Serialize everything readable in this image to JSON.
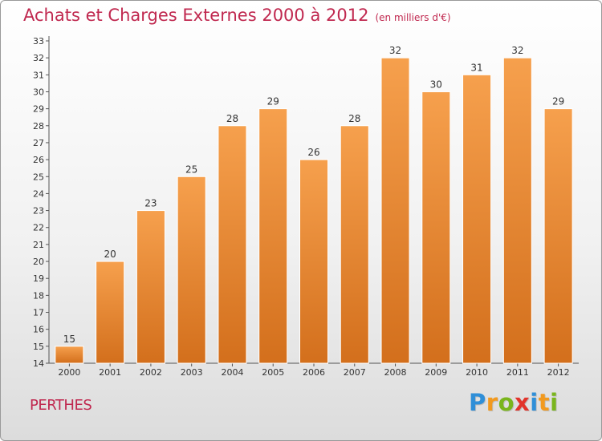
{
  "title": "Achats et Charges Externes 2000 à 2012",
  "unit": "(en milliers d'€)",
  "place": "PERTHES",
  "logo": {
    "letters": [
      "P",
      "r",
      "o",
      "x",
      "i",
      "t",
      "i"
    ],
    "colors": [
      "#2f8fd8",
      "#f29a1f",
      "#7ab51d",
      "#e2342b",
      "#2f8fd8",
      "#f29a1f",
      "#7ab51d"
    ]
  },
  "colors": {
    "bar_light": "#f6a04d",
    "bar_dark": "#d36f1c",
    "title": "#c0284f"
  },
  "chart_data": {
    "type": "bar",
    "title": "Achats et Charges Externes 2000 à 2012",
    "subtitle": "(en milliers d'€)",
    "categories": [
      "2000",
      "2001",
      "2002",
      "2003",
      "2004",
      "2005",
      "2006",
      "2007",
      "2008",
      "2009",
      "2010",
      "2011",
      "2012"
    ],
    "values": [
      15,
      20,
      23,
      25,
      28,
      29,
      26,
      28,
      32,
      30,
      31,
      32,
      29
    ],
    "ylim": [
      14,
      33
    ],
    "yticks": [
      14,
      15,
      16,
      17,
      18,
      19,
      20,
      21,
      22,
      23,
      24,
      25,
      26,
      27,
      28,
      29,
      30,
      31,
      32,
      33
    ],
    "grid": false,
    "data_labels": true
  }
}
